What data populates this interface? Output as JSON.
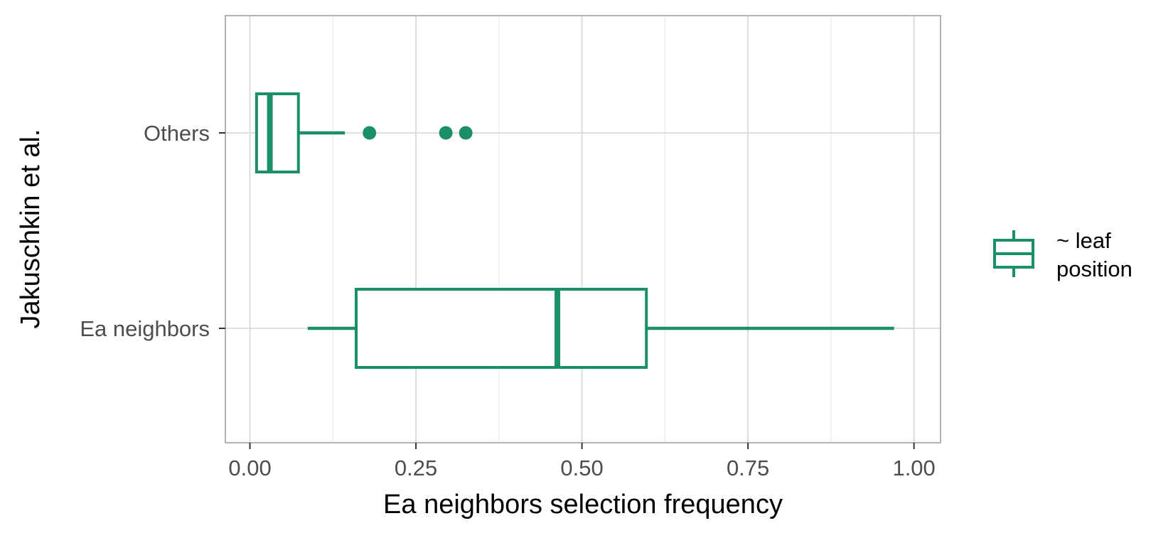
{
  "chart_data": {
    "type": "boxplot",
    "orientation": "horizontal",
    "title": "",
    "xlabel": "Ea neighbors selection frequency",
    "ylabel": "Jakuschkin et al.",
    "xlim": [
      -0.037,
      1.04
    ],
    "x_ticks": [
      0.0,
      0.25,
      0.5,
      0.75,
      1.0
    ],
    "x_tick_labels": [
      "0.00",
      "0.25",
      "0.50",
      "0.75",
      "1.00"
    ],
    "categories": [
      "Others",
      "Ea neighbors"
    ],
    "grid": true,
    "color": "#1b9068",
    "legend": {
      "position": "right",
      "label_lines": [
        "~ leaf",
        "position"
      ]
    },
    "series": [
      {
        "category": "Others",
        "whisker_low": 0.01,
        "q1": 0.01,
        "median": 0.03,
        "q3": 0.073,
        "whisker_high": 0.143,
        "outliers": [
          0.18,
          0.295,
          0.325
        ]
      },
      {
        "category": "Ea neighbors",
        "whisker_low": 0.087,
        "q1": 0.16,
        "median": 0.463,
        "q3": 0.597,
        "whisker_high": 0.97,
        "outliers": []
      }
    ]
  }
}
